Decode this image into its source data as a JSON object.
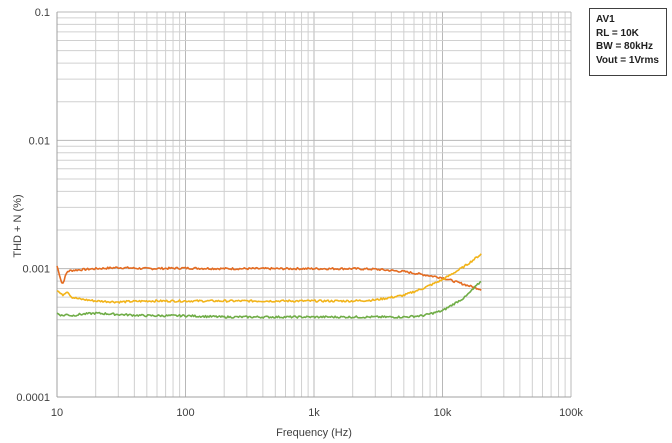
{
  "chart_data": {
    "type": "line",
    "title": "",
    "xlabel": "Frequency (Hz)",
    "ylabel": "THD + N (%)",
    "x_scale": "log",
    "y_scale": "log",
    "xlim": [
      10,
      100000
    ],
    "ylim": [
      0.0001,
      0.1
    ],
    "x_tick_labels": [
      "10",
      "100",
      "1k",
      "10k",
      "100k"
    ],
    "y_tick_labels": [
      "0.1",
      "0.01",
      "0.001",
      "0.0001"
    ],
    "grid": true,
    "legend_placement": "top-right",
    "legend_text": [
      "AV1",
      "RL = 10K",
      "BW = 80kHz",
      "Vout = 1Vrms"
    ],
    "colors": {
      "orange": "#E46C22",
      "yellow": "#F2B41A",
      "green": "#70AD47",
      "grid": "#d0d0d0",
      "axis": "#a0a0a0"
    },
    "series": [
      {
        "color": "#E46C22",
        "x": [
          10,
          11,
          12,
          13,
          15,
          20,
          30,
          50,
          100,
          200,
          500,
          1000,
          2000,
          3000,
          5000,
          7000,
          10000,
          15000,
          20000
        ],
        "y": [
          0.00105,
          0.00075,
          0.00095,
          0.00097,
          0.00098,
          0.001,
          0.00102,
          0.001,
          0.00101,
          0.001,
          0.001,
          0.001,
          0.001,
          0.00099,
          0.00095,
          0.0009,
          0.00085,
          0.00075,
          0.00069
        ]
      },
      {
        "color": "#F2B41A",
        "x": [
          10,
          11,
          12,
          13,
          15,
          20,
          30,
          50,
          100,
          200,
          500,
          1000,
          2000,
          3000,
          5000,
          7000,
          10000,
          15000,
          20000
        ],
        "y": [
          0.00068,
          0.00062,
          0.00067,
          0.0006,
          0.00058,
          0.00056,
          0.00055,
          0.00056,
          0.00056,
          0.00056,
          0.00056,
          0.00056,
          0.00056,
          0.00057,
          0.00062,
          0.0007,
          0.00082,
          0.00105,
          0.0013
        ]
      },
      {
        "color": "#70AD47",
        "x": [
          10,
          11,
          12,
          13,
          15,
          20,
          30,
          50,
          100,
          200,
          500,
          1000,
          2000,
          3000,
          5000,
          7000,
          10000,
          15000,
          20000
        ],
        "y": [
          0.00045,
          0.00043,
          0.00044,
          0.00043,
          0.00044,
          0.00045,
          0.00044,
          0.00043,
          0.00043,
          0.00042,
          0.00042,
          0.00042,
          0.00042,
          0.00042,
          0.00042,
          0.00043,
          0.00047,
          0.0006,
          0.0008
        ]
      }
    ]
  }
}
